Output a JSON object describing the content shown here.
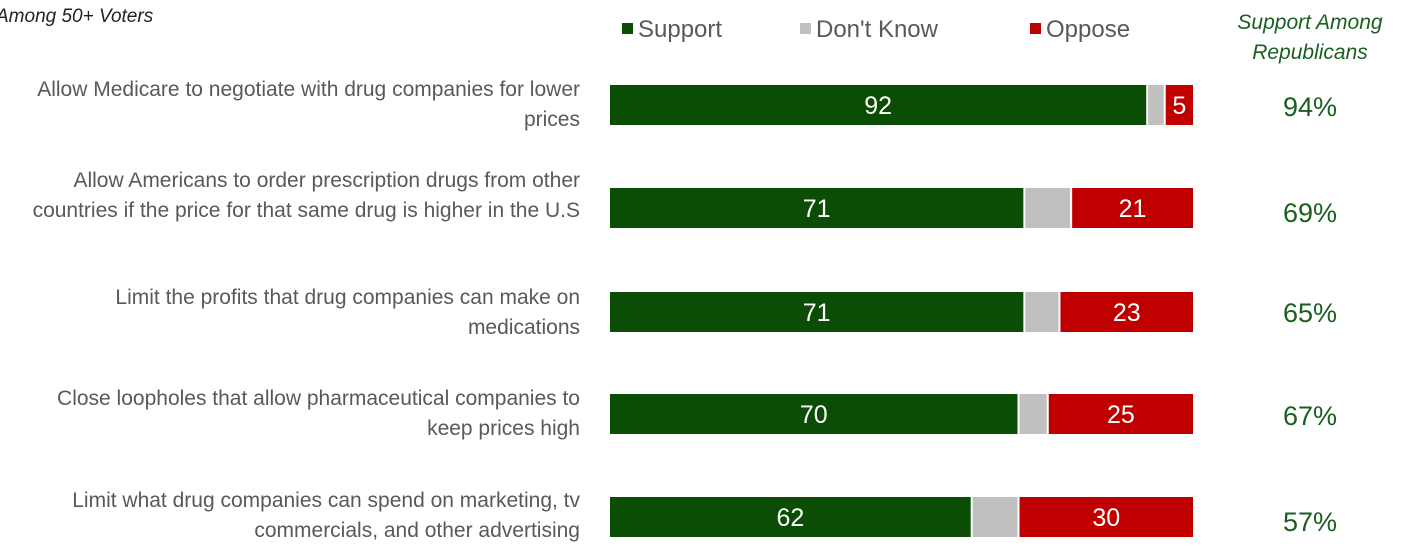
{
  "subtitle": "Among 50+ Voters",
  "legend": {
    "support": "Support",
    "dont_know": "Don't Know",
    "oppose": "Oppose"
  },
  "republican_header": "Support Among Republicans",
  "colors": {
    "support": "#0b4d04",
    "dont_know": "#c0c0c0",
    "oppose": "#c00000",
    "republican_text": "#1a5e20"
  },
  "chart_data": {
    "type": "bar",
    "orientation": "horizontal",
    "stacked": true,
    "categories": [
      "Allow Medicare to negotiate with drug companies for lower prices",
      "Allow Americans to order prescription drugs from other countries if the price for that same drug is higher in the U.S",
      "Limit the profits that drug companies can make on medications",
      "Close loopholes that allow pharmaceutical companies to keep prices high",
      "Limit what drug companies can spend on marketing, tv commercials, and other advertising"
    ],
    "series": [
      {
        "name": "Support",
        "values": [
          92,
          71,
          71,
          70,
          62
        ],
        "labels": [
          "92",
          "71",
          "71",
          "70",
          "62"
        ]
      },
      {
        "name": "Don't Know",
        "values": [
          3,
          8,
          6,
          5,
          8
        ],
        "labels": [
          "",
          "",
          "",
          "",
          ""
        ]
      },
      {
        "name": "Oppose",
        "values": [
          5,
          21,
          23,
          25,
          30
        ],
        "labels": [
          "5",
          "21",
          "23",
          "25",
          "30"
        ]
      }
    ],
    "republican_support": [
      "94%",
      "69%",
      "65%",
      "67%",
      "57%"
    ],
    "xlim": [
      0,
      100
    ],
    "legend_position": "top",
    "grid": false
  }
}
